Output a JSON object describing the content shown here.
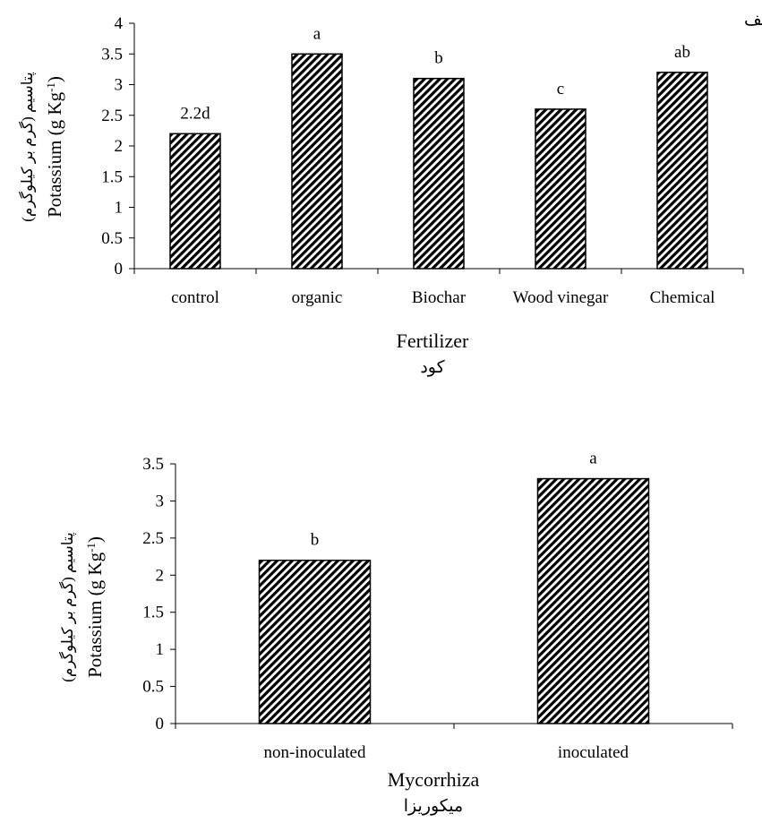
{
  "colors": {
    "bar_stroke": "#000000",
    "bar_hatch_dark": "#000000",
    "bar_hatch_light": "#ffffff",
    "axis": "#000000"
  },
  "chart_data": [
    {
      "type": "bar",
      "panel_label": "الف",
      "ylabel": "Potassium (g Kg",
      "ylabel_superscript": "-1",
      "ylabel_close": ")",
      "ylabel_fa": "پتاسیم (گرم بر کیلوگرم)",
      "xlabel": "Fertilizer",
      "xlabel_fa": "کود",
      "ylim": [
        0,
        4
      ],
      "ytick_step": 0.5,
      "yticks": [
        "0",
        "0.5",
        "1",
        "1.5",
        "2",
        "2.5",
        "3",
        "3.5",
        "4"
      ],
      "categories": [
        "control",
        "organic",
        "Biochar",
        "Wood vinegar",
        "Chemical"
      ],
      "values": [
        2.2,
        3.5,
        3.1,
        2.6,
        3.2
      ],
      "data_labels": [
        "2.2d",
        "a",
        "b",
        "c",
        "ab"
      ],
      "grid": false,
      "legend": "none"
    },
    {
      "type": "bar",
      "panel_label": "",
      "ylabel": "Potassium (g Kg",
      "ylabel_superscript": "-1",
      "ylabel_close": ")",
      "ylabel_fa": "پتاسیم (گرم بر کیلوگرم)",
      "xlabel": "Mycorrhiza",
      "xlabel_fa": "میکوریزا",
      "ylim": [
        0,
        3.5
      ],
      "ytick_step": 0.5,
      "yticks": [
        "0",
        "0.5",
        "1",
        "1.5",
        "2",
        "2.5",
        "3",
        "3.5"
      ],
      "categories": [
        "non-inoculated",
        "inoculated"
      ],
      "values": [
        2.2,
        3.3
      ],
      "data_labels": [
        "b",
        "a"
      ],
      "grid": false,
      "legend": "none"
    }
  ]
}
